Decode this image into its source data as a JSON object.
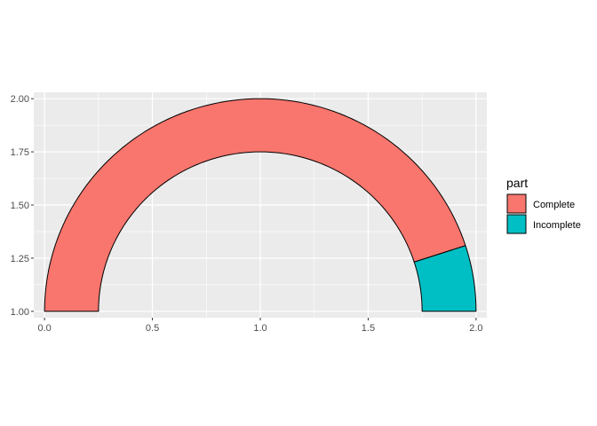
{
  "chart_data": {
    "type": "donut-gauge",
    "title": "",
    "xlabel": "",
    "ylabel": "",
    "xlim": [
      -0.05,
      2.05
    ],
    "ylim": [
      0.97,
      2.03
    ],
    "x_ticks": [
      0,
      0.5,
      1,
      1.5,
      2
    ],
    "x_tick_labels": [
      "0.0",
      "0.5",
      "1.0",
      "1.5",
      "2.0"
    ],
    "y_ticks": [
      1,
      1.25,
      1.5,
      1.75,
      2
    ],
    "y_tick_labels": [
      "1.00",
      "1.25",
      "1.50",
      "1.75",
      "2.00"
    ],
    "grid": true,
    "center": [
      1,
      1
    ],
    "inner_radius": 0.75,
    "outer_radius": 1.0,
    "sweep_degrees": 180,
    "legend": {
      "title": "part",
      "position": "right"
    },
    "series": [
      {
        "name": "Complete",
        "fraction": 0.9,
        "color": "#F8766D"
      },
      {
        "name": "Incomplete",
        "fraction": 0.1,
        "color": "#00BFC4"
      }
    ]
  },
  "colors": {
    "panel_background": "#EBEBEB",
    "grid_major": "#FFFFFF",
    "outline": "#000000"
  }
}
